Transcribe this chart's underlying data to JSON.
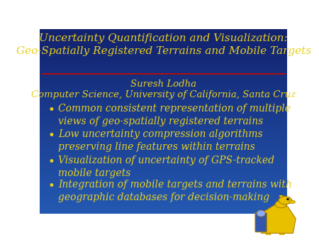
{
  "background_color_top": "#0d1f6e",
  "background_color_mid": "#1a3faa",
  "background_color_bot": "#2255cc",
  "title_line1": "Uncertainty Quantification and Visualization:",
  "title_line2": "Geo-Spatially Registered Terrains and Mobile Targets",
  "title_color": "#e8d020",
  "title_fontsize": 11.0,
  "divider_color": "#aa1111",
  "author": "Suresh Lodha",
  "affiliation": "Computer Science, University of California, Santa Cruz",
  "author_color": "#e8d020",
  "author_fontsize": 9.5,
  "bullet_color": "#e8d020",
  "bullet_fontsize": 10.0,
  "bullet_text_color": "#e8d020",
  "bullets": [
    "Common consistent representation of multiple\nviews of geo-spatially registered terrains",
    "Low uncertainty compression algorithms\npreserving line features within terrains",
    "Visualization of uncertainty of GPS-tracked\nmobile targets",
    "Integration of mobile targets and terrains with\ngeographic databases for decision-making"
  ],
  "icon_gold": "#e8c000",
  "icon_dark": "#b08000"
}
